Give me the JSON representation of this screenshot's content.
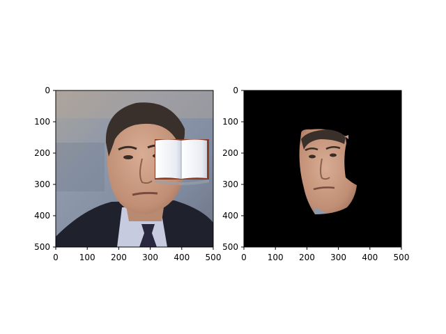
{
  "panels": [
    {
      "id": "original",
      "content": "photo of man in suit and tie with an open-book overlay near his right ear",
      "x_ticks": [
        "0",
        "100",
        "200",
        "300",
        "400",
        "500"
      ],
      "y_ticks": [
        "0",
        "100",
        "200",
        "300",
        "400",
        "500"
      ],
      "xlim": [
        0,
        500
      ],
      "ylim": [
        500,
        0
      ]
    },
    {
      "id": "masked",
      "content": "same face segmented on black background",
      "x_ticks": [
        "0",
        "100",
        "200",
        "300",
        "400",
        "500"
      ],
      "y_ticks": [
        "0",
        "100",
        "200",
        "300",
        "400",
        "500"
      ],
      "xlim": [
        0,
        500
      ],
      "ylim": [
        500,
        0
      ]
    }
  ],
  "colors": {
    "background_left": "#8f99ab",
    "suit": "#1f222c",
    "shirt": "#c7cbe0",
    "skin": "#c99b82",
    "hair": "#3a302b",
    "mask_background": "#000000"
  },
  "icons": {
    "overlay": "open-book-icon"
  }
}
